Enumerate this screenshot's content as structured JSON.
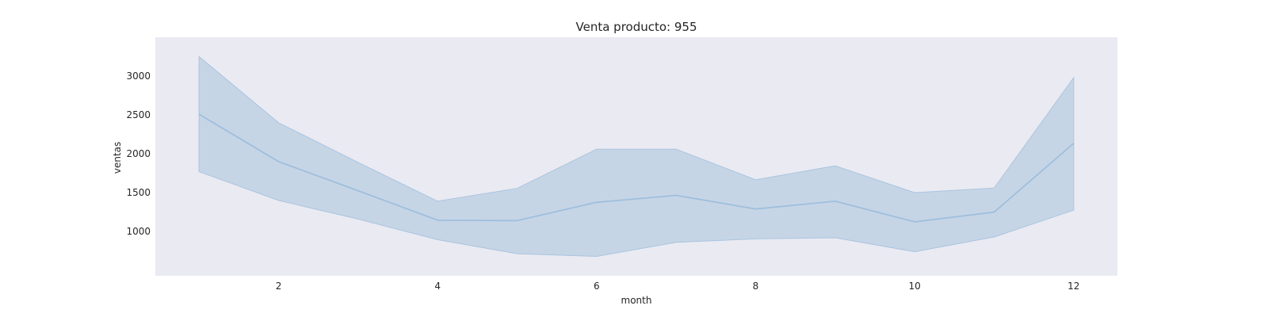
{
  "chart_data": {
    "type": "line",
    "title": "Venta producto: 955",
    "xlabel": "month",
    "ylabel": "ventas",
    "x": [
      1,
      2,
      3,
      4,
      5,
      6,
      7,
      8,
      9,
      10,
      11,
      12
    ],
    "series": [
      {
        "mean": [
          2510,
          1900,
          1525,
          1145,
          1140,
          1375,
          1465,
          1290,
          1390,
          1125,
          1250,
          2135
        ],
        "lower": [
          1770,
          1400,
          1160,
          895,
          715,
          680,
          860,
          905,
          920,
          740,
          930,
          1275
        ],
        "upper": [
          3250,
          2400,
          1890,
          1390,
          1555,
          2060,
          2060,
          1665,
          1845,
          1500,
          1560,
          2980
        ]
      }
    ],
    "xticks": [
      2,
      4,
      6,
      8,
      10,
      12
    ],
    "yticks": [
      1000,
      1500,
      2000,
      2500,
      3000
    ],
    "xlim": [
      0.45,
      12.55
    ],
    "ylim": [
      430,
      3500
    ],
    "grid": false,
    "colors": {
      "background": "#eaeaf2",
      "band": "#c2d3e4",
      "line": "#9ebfdd",
      "text": "#262626"
    }
  }
}
